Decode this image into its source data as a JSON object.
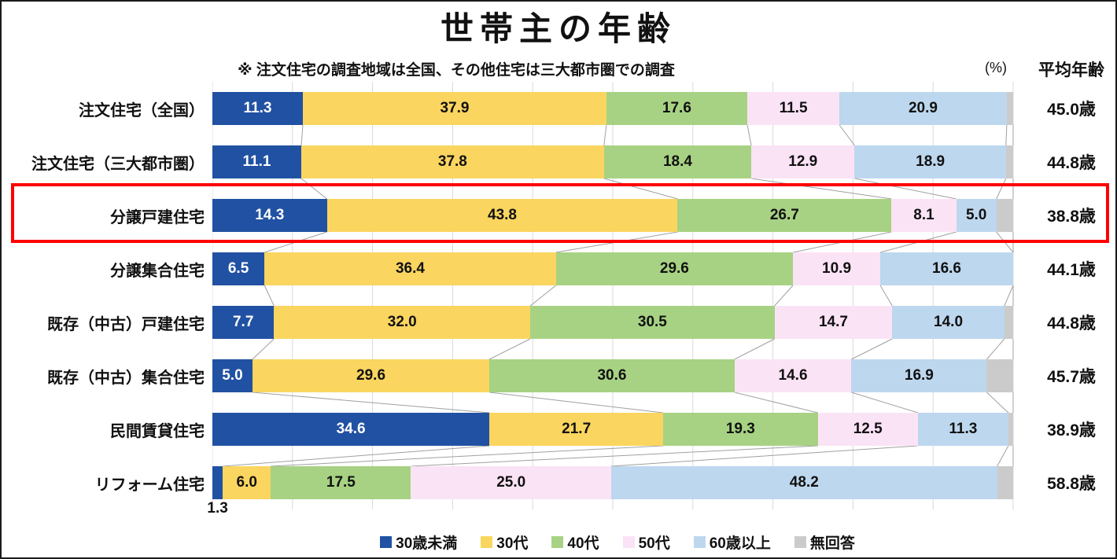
{
  "chart_data": {
    "type": "bar",
    "orientation": "horizontal-stacked",
    "title": "世帯主の年齢",
    "note": "※ 注文住宅の調査地域は全国、その他住宅は三大都市圏での調査",
    "percent_label": "(%)",
    "avg_column_header": "平均年齢",
    "xlim": [
      0,
      100
    ],
    "gridline_interval": 10,
    "grid": true,
    "legend_position": "bottom",
    "colors": {
      "gridline": "#D9D9D9",
      "connector": "#A0A0A0",
      "highlight_border": "#FF0000",
      "text": "#111111"
    },
    "series": [
      {
        "name": "30歳未満",
        "color": "#2151A2",
        "text_color": "#ffffff"
      },
      {
        "name": "30代",
        "color": "#FAD55F",
        "text_color": "#111111"
      },
      {
        "name": "40代",
        "color": "#A7D283",
        "text_color": "#111111"
      },
      {
        "name": "50代",
        "color": "#FBE3F6",
        "text_color": "#111111"
      },
      {
        "name": "60歳以上",
        "color": "#BDD7EE",
        "text_color": "#111111"
      },
      {
        "name": "無回答",
        "color": "#CCCBCB",
        "text_color": "#111111"
      }
    ],
    "rows": [
      {
        "label": "注文住宅（全国）",
        "avg": "45.0歳",
        "values": [
          11.3,
          37.9,
          17.6,
          11.5,
          20.9,
          0.8
        ],
        "labels": [
          "11.3",
          "37.9",
          "17.6",
          "11.5",
          "20.9",
          ""
        ],
        "highlight": false
      },
      {
        "label": "注文住宅（三大都市圏）",
        "avg": "44.8歳",
        "values": [
          11.1,
          37.8,
          18.4,
          12.9,
          18.9,
          0.9
        ],
        "labels": [
          "11.1",
          "37.8",
          "18.4",
          "12.9",
          "18.9",
          ""
        ],
        "highlight": false
      },
      {
        "label": "分譲戸建住宅",
        "avg": "38.8歳",
        "values": [
          14.3,
          43.8,
          26.7,
          8.1,
          5.0,
          2.1
        ],
        "labels": [
          "14.3",
          "43.8",
          "26.7",
          "8.1",
          "5.0",
          ""
        ],
        "highlight": true
      },
      {
        "label": "分譲集合住宅",
        "avg": "44.1歳",
        "values": [
          6.5,
          36.4,
          29.6,
          10.9,
          16.6,
          0.0
        ],
        "labels": [
          "6.5",
          "36.4",
          "29.6",
          "10.9",
          "16.6",
          ""
        ],
        "highlight": false
      },
      {
        "label": "既存（中古）戸建住宅",
        "avg": "44.8歳",
        "values": [
          7.7,
          32.0,
          30.5,
          14.7,
          14.0,
          1.1
        ],
        "labels": [
          "7.7",
          "32.0",
          "30.5",
          "14.7",
          "14.0",
          ""
        ],
        "highlight": false
      },
      {
        "label": "既存（中古）集合住宅",
        "avg": "45.7歳",
        "values": [
          5.0,
          29.6,
          30.6,
          14.6,
          16.9,
          3.3
        ],
        "labels": [
          "5.0",
          "29.6",
          "30.6",
          "14.6",
          "16.9",
          ""
        ],
        "highlight": false
      },
      {
        "label": "民間賃貸住宅",
        "avg": "38.9歳",
        "values": [
          34.6,
          21.7,
          19.3,
          12.5,
          11.3,
          0.6
        ],
        "labels": [
          "34.6",
          "21.7",
          "19.3",
          "12.5",
          "11.3",
          ""
        ],
        "highlight": false
      },
      {
        "label": "リフォーム住宅",
        "avg": "58.8歳",
        "values": [
          1.3,
          6.0,
          17.5,
          25.0,
          48.2,
          2.0
        ],
        "labels": [
          "",
          "6.0",
          "17.5",
          "25.0",
          "48.2",
          ""
        ],
        "outside_label": "1.3",
        "highlight": false
      }
    ]
  }
}
